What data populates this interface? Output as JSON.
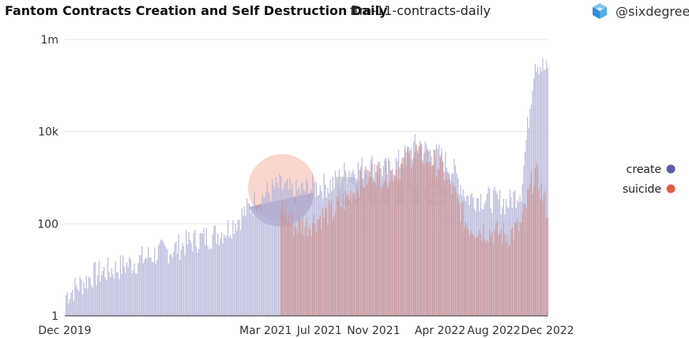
{
  "header": {
    "title": "Fantom Contracts Creation and Self Destruction Daily",
    "subtitle": "ftm-11-contracts-daily",
    "author": "@sixdegree",
    "author_icon": "sixdegree-cube-icon"
  },
  "watermark": {
    "text": "Dune"
  },
  "colors": {
    "create": "#5b5ea6",
    "create_area": "#b7b7d9",
    "suicide": "#e55c43",
    "suicide_area": "#cc9393",
    "grid": "#e6e6e6",
    "axis": "#333333"
  },
  "chart_data": {
    "type": "bar",
    "y_scale": "log",
    "ylim": [
      1,
      1000000
    ],
    "xlim": [
      "2019-12-01",
      "2022-12-01"
    ],
    "y_ticks": [
      {
        "value": 1,
        "label": "1"
      },
      {
        "value": 100,
        "label": "100"
      },
      {
        "value": 10000,
        "label": "10k"
      },
      {
        "value": 1000000,
        "label": "1m"
      }
    ],
    "x_ticks": [
      {
        "date": "2019-12-01",
        "label": "Dec 2019"
      },
      {
        "date": "2021-03-01",
        "label": "Mar 2021"
      },
      {
        "date": "2021-07-01",
        "label": "Jul 2021"
      },
      {
        "date": "2021-11-01",
        "label": "Nov 2021"
      },
      {
        "date": "2022-04-01",
        "label": "Apr 2022"
      },
      {
        "date": "2022-08-01",
        "label": "Aug 2022"
      },
      {
        "date": "2022-12-01",
        "label": "Dec 2022"
      }
    ],
    "legend_position": "right",
    "grid": true,
    "series": [
      {
        "name": "create",
        "points": [
          [
            "2019-12-01",
            3
          ],
          [
            "2020-01-01",
            5
          ],
          [
            "2020-02-01",
            8
          ],
          [
            "2020-03-01",
            10
          ],
          [
            "2020-04-01",
            12
          ],
          [
            "2020-05-01",
            15
          ],
          [
            "2020-06-01",
            20
          ],
          [
            "2020-07-01",
            25
          ],
          [
            "2020-08-01",
            30
          ],
          [
            "2020-09-01",
            40
          ],
          [
            "2020-10-01",
            50
          ],
          [
            "2020-11-01",
            60
          ],
          [
            "2020-12-01",
            80
          ],
          [
            "2021-01-01",
            150
          ],
          [
            "2021-02-01",
            300
          ],
          [
            "2021-03-01",
            500
          ],
          [
            "2021-04-01",
            700
          ],
          [
            "2021-05-01",
            500
          ],
          [
            "2021-06-01",
            600
          ],
          [
            "2021-07-01",
            700
          ],
          [
            "2021-08-01",
            800
          ],
          [
            "2021-09-01",
            1500
          ],
          [
            "2021-10-01",
            1700
          ],
          [
            "2021-11-01",
            2000
          ],
          [
            "2021-12-01",
            1500
          ],
          [
            "2022-01-01",
            2500
          ],
          [
            "2022-02-01",
            5000
          ],
          [
            "2022-03-01",
            4000
          ],
          [
            "2022-04-01",
            3000
          ],
          [
            "2022-05-01",
            1500
          ],
          [
            "2022-06-01",
            400
          ],
          [
            "2022-07-01",
            400
          ],
          [
            "2022-08-01",
            350
          ],
          [
            "2022-09-01",
            300
          ],
          [
            "2022-10-01",
            600
          ],
          [
            "2022-11-01",
            400000
          ],
          [
            "2022-12-01",
            200000
          ]
        ]
      },
      {
        "name": "suicide",
        "points": [
          [
            "2021-04-01",
            300
          ],
          [
            "2021-05-01",
            100
          ],
          [
            "2021-06-01",
            100
          ],
          [
            "2021-07-01",
            150
          ],
          [
            "2021-08-01",
            200
          ],
          [
            "2021-09-01",
            400
          ],
          [
            "2021-10-01",
            800
          ],
          [
            "2021-11-01",
            1500
          ],
          [
            "2021-12-01",
            1200
          ],
          [
            "2022-01-01",
            2000
          ],
          [
            "2022-02-01",
            4000
          ],
          [
            "2022-03-01",
            3000
          ],
          [
            "2022-04-01",
            2000
          ],
          [
            "2022-05-01",
            500
          ],
          [
            "2022-06-01",
            100
          ],
          [
            "2022-07-01",
            80
          ],
          [
            "2022-08-01",
            70
          ],
          [
            "2022-09-01",
            60
          ],
          [
            "2022-10-01",
            100
          ],
          [
            "2022-11-01",
            1500
          ],
          [
            "2022-12-01",
            200
          ]
        ]
      }
    ]
  }
}
